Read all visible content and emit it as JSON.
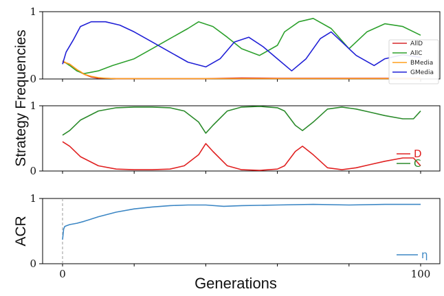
{
  "ylabel_shared": "Strategy Frequencies",
  "xlabel": "Generations",
  "chart_data": [
    {
      "type": "line",
      "xlim": [
        0,
        100
      ],
      "ylim": [
        0,
        1
      ],
      "yticks": [
        "0",
        "1"
      ],
      "legend_position": "right",
      "series": [
        {
          "name": "AllD",
          "color": "#d62728",
          "x": [
            0,
            1,
            2,
            3,
            4,
            5,
            6,
            8,
            10,
            12,
            15,
            20,
            30,
            40,
            50,
            60,
            70,
            80,
            90,
            100
          ],
          "y": [
            0.25,
            0.24,
            0.22,
            0.18,
            0.14,
            0.1,
            0.07,
            0.03,
            0.01,
            0.01,
            0.005,
            0.005,
            0.005,
            0.005,
            0.015,
            0.01,
            0.01,
            0.01,
            0.01,
            0.01
          ]
        },
        {
          "name": "AllC",
          "color": "#2ca02c",
          "x": [
            0,
            2,
            4,
            6,
            8,
            10,
            14,
            20,
            25,
            30,
            35,
            38,
            42,
            46,
            50,
            55,
            60,
            62,
            66,
            70,
            75,
            80,
            85,
            90,
            95,
            100
          ],
          "y": [
            0.27,
            0.2,
            0.12,
            0.08,
            0.1,
            0.12,
            0.2,
            0.3,
            0.45,
            0.6,
            0.75,
            0.85,
            0.78,
            0.62,
            0.45,
            0.35,
            0.5,
            0.7,
            0.85,
            0.9,
            0.75,
            0.45,
            0.7,
            0.82,
            0.78,
            0.65
          ]
        },
        {
          "name": "BMedia",
          "color": "#ff9f1c",
          "x": [
            0,
            1,
            2,
            3,
            4,
            5,
            6,
            8,
            10,
            12,
            15,
            20,
            30,
            40,
            50,
            60,
            70,
            80,
            90,
            100
          ],
          "y": [
            0.27,
            0.24,
            0.22,
            0.18,
            0.14,
            0.11,
            0.07,
            0.04,
            0.02,
            0.01,
            0.005,
            0.005,
            0.005,
            0.005,
            0.005,
            0.005,
            0.005,
            0.005,
            0.005,
            0.005
          ]
        },
        {
          "name": "GMedia",
          "color": "#1f1fd6",
          "x": [
            0,
            1,
            3,
            5,
            8,
            12,
            16,
            20,
            25,
            30,
            35,
            40,
            44,
            48,
            52,
            56,
            60,
            64,
            68,
            72,
            75,
            78,
            82,
            87,
            90,
            95,
            100
          ],
          "y": [
            0.22,
            0.4,
            0.58,
            0.78,
            0.85,
            0.85,
            0.8,
            0.7,
            0.55,
            0.4,
            0.25,
            0.18,
            0.3,
            0.55,
            0.62,
            0.48,
            0.3,
            0.12,
            0.3,
            0.6,
            0.7,
            0.55,
            0.35,
            0.2,
            0.3,
            0.36,
            0.32
          ]
        }
      ]
    },
    {
      "type": "line",
      "xlim": [
        0,
        100
      ],
      "ylim": [
        0,
        1
      ],
      "yticks": [
        "0",
        "1"
      ],
      "legend_position": "bottom-right",
      "series": [
        {
          "name": "D",
          "color": "#e02020",
          "x": [
            0,
            2,
            5,
            10,
            15,
            20,
            25,
            30,
            34,
            38,
            40,
            42,
            46,
            50,
            55,
            60,
            62,
            65,
            67,
            70,
            74,
            78,
            82,
            86,
            90,
            95,
            98,
            100
          ],
          "y": [
            0.45,
            0.38,
            0.22,
            0.08,
            0.03,
            0.02,
            0.02,
            0.03,
            0.08,
            0.25,
            0.42,
            0.3,
            0.08,
            0.02,
            0.01,
            0.03,
            0.08,
            0.3,
            0.38,
            0.25,
            0.05,
            0.02,
            0.05,
            0.1,
            0.15,
            0.2,
            0.2,
            0.08
          ]
        },
        {
          "name": "C",
          "color": "#2a8a2a",
          "x": [
            0,
            2,
            5,
            10,
            15,
            20,
            25,
            30,
            34,
            38,
            40,
            42,
            46,
            50,
            55,
            60,
            62,
            65,
            67,
            70,
            74,
            78,
            82,
            86,
            90,
            95,
            98,
            100
          ],
          "y": [
            0.55,
            0.62,
            0.78,
            0.92,
            0.97,
            0.98,
            0.98,
            0.97,
            0.92,
            0.75,
            0.58,
            0.7,
            0.92,
            0.98,
            0.99,
            0.97,
            0.92,
            0.7,
            0.62,
            0.75,
            0.95,
            0.98,
            0.95,
            0.9,
            0.85,
            0.8,
            0.8,
            0.92
          ]
        }
      ]
    },
    {
      "type": "line",
      "ylabel": "ACR",
      "xlim": [
        0,
        100
      ],
      "ylim": [
        0,
        1
      ],
      "yticks": [
        "0",
        "1"
      ],
      "xticks": [
        "0",
        "100"
      ],
      "legend_position": "bottom-right",
      "vline_x": 0,
      "series": [
        {
          "name": "η",
          "color": "#3b86c4",
          "x": [
            0,
            0.3,
            0.6,
            1,
            2,
            4,
            6,
            10,
            15,
            20,
            25,
            30,
            35,
            40,
            45,
            50,
            60,
            70,
            80,
            90,
            100
          ],
          "y": [
            0.37,
            0.53,
            0.57,
            0.58,
            0.6,
            0.62,
            0.65,
            0.72,
            0.79,
            0.84,
            0.87,
            0.89,
            0.9,
            0.9,
            0.88,
            0.89,
            0.9,
            0.91,
            0.9,
            0.91,
            0.91
          ]
        }
      ]
    }
  ]
}
